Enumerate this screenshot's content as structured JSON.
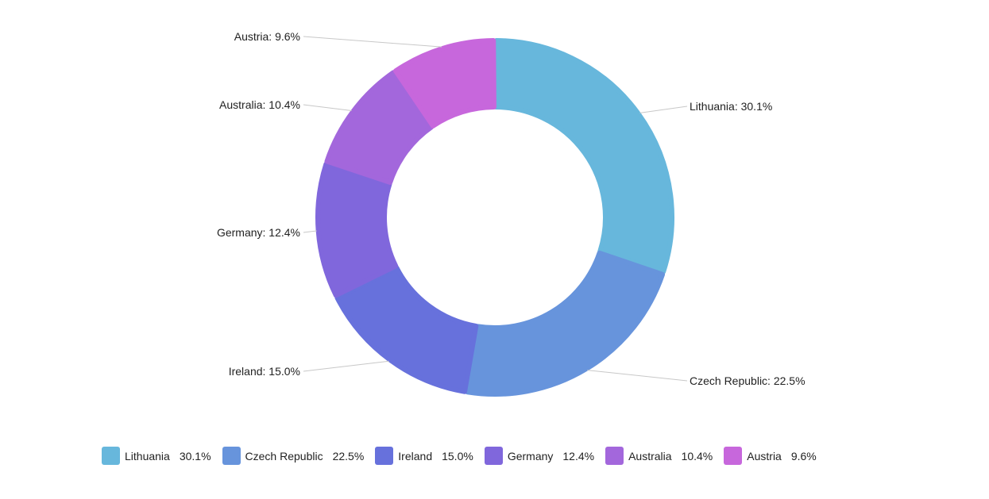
{
  "chart_data": {
    "type": "pie",
    "variant": "donut",
    "slices": [
      {
        "name": "Lithuania",
        "value": 30.1,
        "label": "Lithuania: 30.1%",
        "legend_value": "30.1%",
        "color": "#67b7dc"
      },
      {
        "name": "Czech Republic",
        "value": 22.5,
        "label": "Czech Republic: 22.5%",
        "legend_value": "22.5%",
        "color": "#6794dc"
      },
      {
        "name": "Ireland",
        "value": 15.0,
        "label": "Ireland: 15.0%",
        "legend_value": "15.0%",
        "color": "#6771dc"
      },
      {
        "name": "Germany",
        "value": 12.4,
        "label": "Germany: 12.4%",
        "legend_value": "12.4%",
        "color": "#8067dc"
      },
      {
        "name": "Australia",
        "value": 10.4,
        "label": "Australia: 10.4%",
        "legend_value": "10.4%",
        "color": "#a367dc"
      },
      {
        "name": "Austria",
        "value": 9.6,
        "label": "Austria: 9.6%",
        "legend_value": "9.6%",
        "color": "#c767dc"
      }
    ],
    "legend_placement": "bottom"
  }
}
